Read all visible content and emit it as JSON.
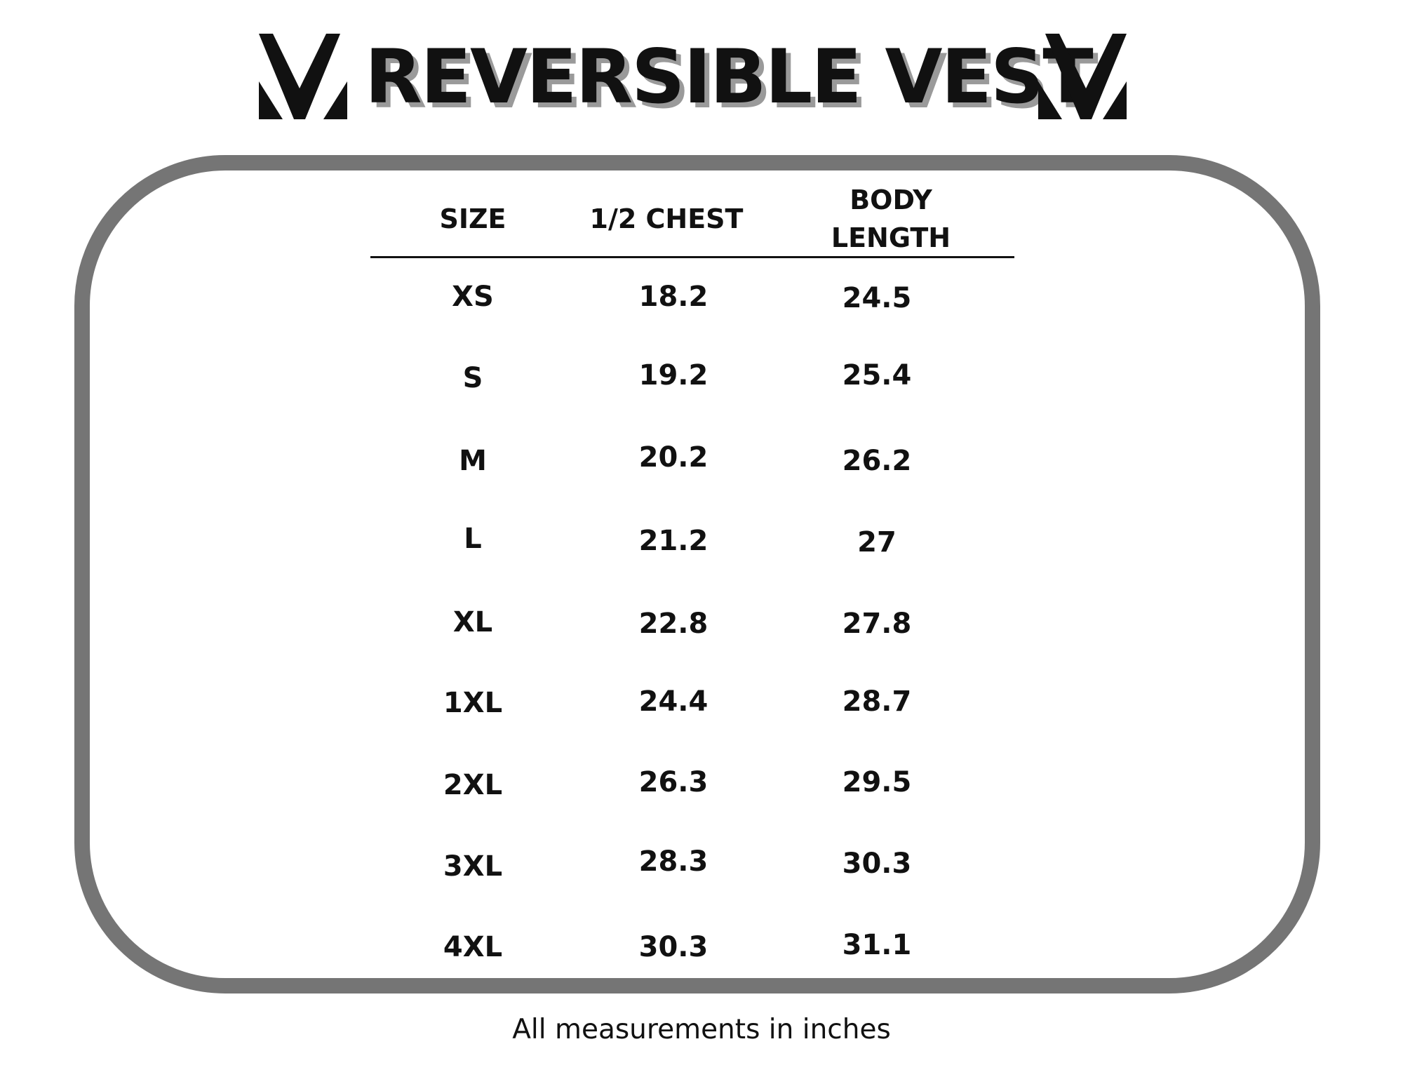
{
  "title": "REVERSIBLE VEST",
  "logo_icon": "v-chevron-logo-icon",
  "frame_color": "#757575",
  "table": {
    "headers": {
      "size": "SIZE",
      "chest": "1/2 CHEST",
      "body_line1": "BODY",
      "body_line2": "LENGTH"
    },
    "rows": [
      {
        "size": "XS",
        "chest": "18.2",
        "body": "24.5"
      },
      {
        "size": "S",
        "chest": "19.2",
        "body": "25.4"
      },
      {
        "size": "M",
        "chest": "20.2",
        "body": "26.2"
      },
      {
        "size": "L",
        "chest": "21.2",
        "body": "27"
      },
      {
        "size": "XL",
        "chest": "22.8",
        "body": "27.8"
      },
      {
        "size": "1XL",
        "chest": "24.4",
        "body": "28.7"
      },
      {
        "size": "2XL",
        "chest": "26.3",
        "body": "29.5"
      },
      {
        "size": "3XL",
        "chest": "28.3",
        "body": "30.3"
      },
      {
        "size": "4XL",
        "chest": "30.3",
        "body": "31.1"
      }
    ]
  },
  "footnote": "All measurements in inches"
}
